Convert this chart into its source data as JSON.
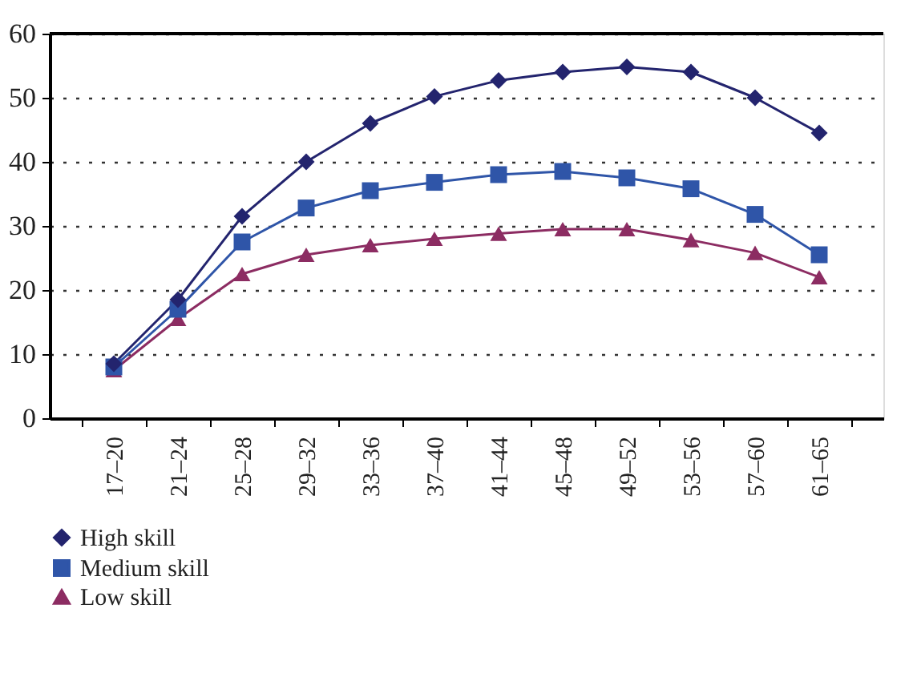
{
  "chart_data": {
    "type": "line",
    "categories": [
      "17–20",
      "21–24",
      "25–28",
      "29–32",
      "33–36",
      "37–40",
      "41–44",
      "45–48",
      "49–52",
      "53–56",
      "57–60",
      "61–65"
    ],
    "series": [
      {
        "name": "High skill",
        "color": "#23246e",
        "marker": "diamond",
        "values": [
          8.5,
          18.5,
          31.5,
          40,
          46,
          50.2,
          52.7,
          54,
          54.8,
          54,
          50,
          44.5
        ]
      },
      {
        "name": "Medium skill",
        "color": "#2f55a8",
        "marker": "square",
        "values": [
          8,
          17,
          27.5,
          32.8,
          35.5,
          36.8,
          38,
          38.5,
          37.5,
          35.8,
          31.8,
          25.5
        ]
      },
      {
        "name": "Low skill",
        "color": "#8c2c62",
        "marker": "triangle",
        "values": [
          7.5,
          15.5,
          22.5,
          25.5,
          27,
          28,
          28.8,
          29.5,
          29.5,
          27.8,
          25.8,
          22
        ]
      }
    ],
    "ylim": [
      0,
      60
    ],
    "yticks": [
      0,
      10,
      20,
      30,
      40,
      50,
      60
    ],
    "grid": "y",
    "legend": "bottom left",
    "line_style": "solid"
  }
}
